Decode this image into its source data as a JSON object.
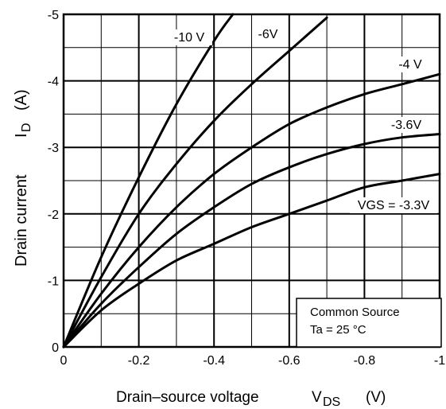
{
  "chart_data": {
    "type": "line",
    "xlabel": "Drain–source voltage",
    "xlabel_symbol": "V",
    "xlabel_subscript": "DS",
    "xlabel_unit": "(V)",
    "ylabel": "Drain current",
    "ylabel_symbol": "I",
    "ylabel_subscript": "D",
    "ylabel_unit": "(A)",
    "xlim": [
      0,
      -1
    ],
    "ylim": [
      0,
      -5
    ],
    "x_ticks": [
      {
        "value": 0,
        "label": "0"
      },
      {
        "value": -0.2,
        "label": "-0.2"
      },
      {
        "value": -0.4,
        "label": "-0.4"
      },
      {
        "value": -0.6,
        "label": "-0.6"
      },
      {
        "value": -0.8,
        "label": "-0.8"
      },
      {
        "value": -1,
        "label": "-1"
      }
    ],
    "y_ticks": [
      {
        "value": 0,
        "label": "0"
      },
      {
        "value": -1,
        "label": "-1"
      },
      {
        "value": -2,
        "label": "-2"
      },
      {
        "value": -3,
        "label": "-3"
      },
      {
        "value": -4,
        "label": "-4"
      },
      {
        "value": -5,
        "label": "-5"
      }
    ],
    "grid": true,
    "series": [
      {
        "name": "-10 V",
        "x": [
          0,
          -0.1,
          -0.2,
          -0.3,
          -0.4,
          -0.45
        ],
        "y": [
          0,
          -1.35,
          -2.55,
          -3.65,
          -4.6,
          -5.0
        ]
      },
      {
        "name": "-6V",
        "x": [
          0,
          -0.1,
          -0.2,
          -0.3,
          -0.4,
          -0.5,
          -0.6,
          -0.7
        ],
        "y": [
          0,
          -1.05,
          -2.0,
          -2.75,
          -3.4,
          -3.95,
          -4.45,
          -4.95
        ]
      },
      {
        "name": "-4 V",
        "x": [
          0,
          -0.1,
          -0.2,
          -0.3,
          -0.4,
          -0.5,
          -0.6,
          -0.7,
          -0.8,
          -0.9,
          -1.0
        ],
        "y": [
          0,
          -0.8,
          -1.5,
          -2.1,
          -2.6,
          -3.0,
          -3.35,
          -3.6,
          -3.8,
          -3.95,
          -4.1
        ]
      },
      {
        "name": "-3.6V",
        "x": [
          0,
          -0.1,
          -0.2,
          -0.3,
          -0.4,
          -0.5,
          -0.6,
          -0.7,
          -0.8,
          -0.9,
          -1.0
        ],
        "y": [
          0,
          -0.65,
          -1.2,
          -1.7,
          -2.1,
          -2.45,
          -2.7,
          -2.9,
          -3.05,
          -3.15,
          -3.2
        ]
      },
      {
        "name": "VGS = -3.3V",
        "x": [
          0,
          -0.1,
          -0.2,
          -0.3,
          -0.4,
          -0.5,
          -0.6,
          -0.7,
          -0.8,
          -0.9,
          -1.0
        ],
        "y": [
          0,
          -0.55,
          -0.95,
          -1.3,
          -1.55,
          -1.8,
          -2.0,
          -2.2,
          -2.4,
          -2.5,
          -2.6
        ]
      }
    ],
    "annotation_box": {
      "line1": "Common Source",
      "line2": "Ta = 25 °C"
    }
  }
}
